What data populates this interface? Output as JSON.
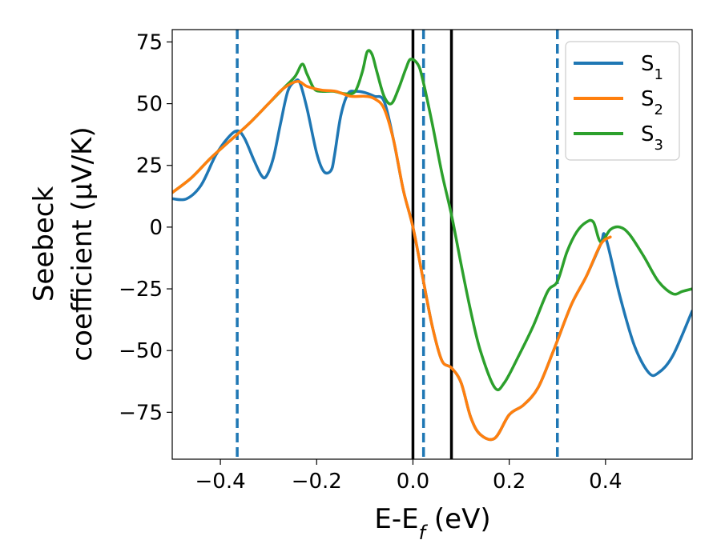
{
  "chart_data": {
    "type": "line",
    "xlabel": {
      "main": "E-E",
      "sub": "f",
      "unit": " (eV)"
    },
    "ylabel": {
      "line1": "Seebeck",
      "line2": "coefficient  (μV/K)"
    },
    "xlim": [
      -0.5,
      0.58
    ],
    "ylim": [
      -94,
      80
    ],
    "xticks": [
      -0.4,
      -0.2,
      0.0,
      0.2,
      0.4
    ],
    "xtick_labels": [
      "−0.4",
      "−0.2",
      "0.0",
      "0.2",
      "0.4"
    ],
    "yticks": [
      75,
      50,
      25,
      0,
      -25,
      -50,
      -75
    ],
    "ytick_labels": [
      "75",
      "50",
      "25",
      "0",
      "−25",
      "−50",
      "−75"
    ],
    "grid": false,
    "legend_position": "top-right",
    "colors": {
      "s1": "#1f77b4",
      "s2": "#ff7f0e",
      "s3": "#2ca02c",
      "vline_solid": "#000000",
      "vline_dashed": "#1f77b4"
    },
    "vlines_solid": [
      0.0,
      0.08
    ],
    "vlines_dashed": [
      -0.365,
      0.022,
      0.3
    ],
    "series": [
      {
        "name": "S",
        "sub": "1",
        "color_key": "s1",
        "x": [
          -0.5,
          -0.47,
          -0.44,
          -0.41,
          -0.385,
          -0.365,
          -0.35,
          -0.33,
          -0.315,
          -0.305,
          -0.29,
          -0.275,
          -0.26,
          -0.245,
          -0.235,
          -0.22,
          -0.2,
          -0.185,
          -0.17,
          -0.163,
          -0.15,
          -0.135,
          -0.12,
          -0.1,
          -0.08,
          -0.06,
          -0.04,
          -0.02,
          0.0,
          0.02,
          0.04,
          0.06,
          0.08,
          0.1,
          0.12,
          0.14,
          0.17,
          0.2,
          0.23,
          0.26,
          0.29,
          0.3,
          0.33,
          0.36,
          0.39,
          0.4,
          0.43,
          0.46,
          0.49,
          0.51,
          0.54,
          0.58
        ],
        "y": [
          11.5,
          11.5,
          17,
          29,
          36,
          39,
          36,
          27,
          21,
          20.5,
          28,
          42,
          55,
          59,
          58.5,
          48,
          30,
          22.5,
          23,
          29,
          45,
          54,
          55,
          54.5,
          53,
          51,
          35,
          15,
          0,
          -20,
          -40,
          -54,
          -57,
          -63,
          -77,
          -84,
          -85.5,
          -76,
          -72,
          -65,
          -51,
          -46,
          -31,
          -20,
          -7,
          -4,
          -28,
          -48,
          -59,
          -59,
          -52,
          -34
        ]
      },
      {
        "name": "S",
        "sub": "2",
        "color_key": "s2",
        "x": [
          -0.5,
          -0.46,
          -0.42,
          -0.38,
          -0.34,
          -0.3,
          -0.27,
          -0.24,
          -0.22,
          -0.19,
          -0.16,
          -0.13,
          -0.1,
          -0.08,
          -0.06,
          -0.04,
          -0.02,
          0.0,
          0.02,
          0.04,
          0.06,
          0.08,
          0.1,
          0.12,
          0.14,
          0.17,
          0.2,
          0.23,
          0.26,
          0.29,
          0.3,
          0.33,
          0.36,
          0.39,
          0.41
        ],
        "y": [
          14,
          20,
          28,
          35,
          42,
          50,
          56,
          59,
          57,
          55.5,
          55,
          53,
          53,
          52,
          48,
          35,
          15,
          0,
          -20,
          -40,
          -54,
          -57,
          -63,
          -77,
          -84,
          -85.5,
          -76,
          -72,
          -65,
          -51,
          -46,
          -31,
          -20,
          -7,
          -4
        ]
      },
      {
        "name": "S",
        "sub": "3",
        "color_key": "s3",
        "x": [
          -0.5,
          -0.46,
          -0.42,
          -0.38,
          -0.34,
          -0.3,
          -0.27,
          -0.245,
          -0.23,
          -0.22,
          -0.205,
          -0.19,
          -0.165,
          -0.14,
          -0.12,
          -0.105,
          -0.095,
          -0.085,
          -0.075,
          -0.06,
          -0.045,
          -0.03,
          -0.015,
          -0.005,
          0.01,
          0.02,
          0.04,
          0.06,
          0.08,
          0.1,
          0.12,
          0.14,
          0.17,
          0.19,
          0.22,
          0.25,
          0.28,
          0.3,
          0.32,
          0.34,
          0.36,
          0.375,
          0.39,
          0.41,
          0.43,
          0.45,
          0.48,
          0.51,
          0.54,
          0.56,
          0.58
        ],
        "y": [
          14,
          20,
          28,
          35,
          42,
          50,
          56,
          61,
          66,
          62,
          56,
          55,
          55,
          54,
          55,
          63,
          71,
          70,
          63,
          53,
          50,
          56,
          64,
          68,
          66,
          60,
          42,
          22,
          5,
          -15,
          -34,
          -50,
          -65,
          -63,
          -52,
          -40,
          -26,
          -22,
          -10,
          -2,
          2,
          2,
          -6,
          -1,
          0,
          -3,
          -12,
          -22,
          -27,
          -26,
          -25
        ]
      }
    ]
  }
}
